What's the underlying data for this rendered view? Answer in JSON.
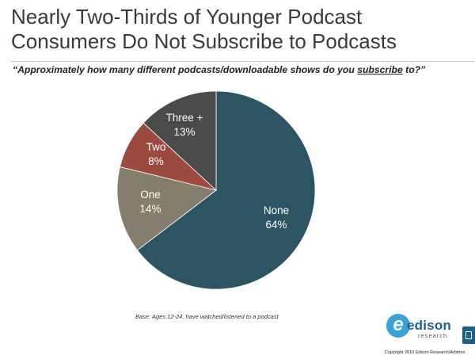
{
  "title_line1": "Nearly Two-Thirds of Younger Podcast",
  "title_line2": "Consumers Do Not Subscribe to Podcasts",
  "question": {
    "before": "“Approximately how many different podcasts/downloadable shows do you ",
    "underlined": "subscribe",
    "after": " to?”"
  },
  "base_note": "Base: Ages 12-24, have watched/listened to a podcast",
  "logo": {
    "wordmark": "edison",
    "sub": "research",
    "icon": "edison-e-icon"
  },
  "copyright": "Copyright 2010 Edison Research/Arbitron",
  "colors": {
    "none": "#2c5462",
    "one": "#867e6c",
    "two": "#9c4a40",
    "three_plus": "#4a4a4a",
    "logo_blue": "#3aa3d6"
  },
  "chart_data": {
    "type": "pie",
    "start": "12 o'clock, clockwise",
    "slices": [
      {
        "name": "None",
        "value": 64,
        "pct_label": "64%",
        "color": "#2c5462"
      },
      {
        "name": "One",
        "value": 14,
        "pct_label": "14%",
        "color": "#867e6c"
      },
      {
        "name": "Two",
        "value": 8,
        "pct_label": "8%",
        "color": "#9c4a40"
      },
      {
        "name": "Three +",
        "value": 13,
        "pct_label": "13%",
        "color": "#4a4a4a"
      }
    ]
  }
}
